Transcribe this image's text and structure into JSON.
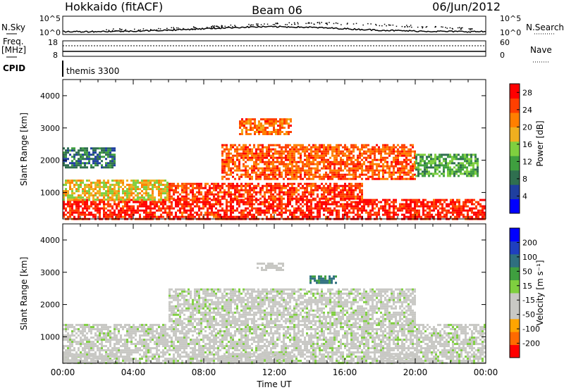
{
  "header": {
    "title_left": "Hokkaido (fitACF)",
    "title_center": "Beam 06",
    "title_right": "06/Jun/2012"
  },
  "strip_panels": {
    "nsky_label": "N.Sky",
    "nsearch_label": "N.Search",
    "nsky_ticks": [
      "10^5",
      "10^0"
    ],
    "nsearch_ticks": [
      "10^5",
      "10^0"
    ],
    "freq_label_line1": "Freq.",
    "freq_label_line2": "[MHz]",
    "freq_ticks": [
      "18",
      "8"
    ],
    "nave_label": "Nave",
    "nave_ticks": [
      "60",
      "0"
    ],
    "cpid_label": "CPID",
    "cpid_value": "themis 3300"
  },
  "colors": {
    "power_scale": [
      "#0000ff",
      "#1f3f9f",
      "#2f6f4f",
      "#3f9f3f",
      "#7fcf3f",
      "#efaf1f",
      "#ff7f00",
      "#ff3f00",
      "#ff0000"
    ],
    "velocity_scale": [
      "#ff0000",
      "#ff6a00",
      "#ffa500",
      "#c8c8c4",
      "#c8c8c4",
      "#7fcf3f",
      "#3f9f3f",
      "#2f6f7f",
      "#1f3fbf",
      "#0000ff"
    ],
    "scatter_gray": "#c8c8c4"
  },
  "chart_data": [
    {
      "type": "heatmap",
      "name": "power",
      "ylabel": "Slant Range [km]",
      "xlabel": "",
      "x_range_hours": [
        0,
        24
      ],
      "y_range_km": [
        180,
        4500
      ],
      "yticks": [
        "1000",
        "2000",
        "3000",
        "4000"
      ],
      "colorbar_label": "Power [dB]",
      "colorbar_ticks": [
        "4",
        "8",
        "12",
        "16",
        "20",
        "24",
        "28"
      ],
      "colorbar_range": [
        0,
        30
      ],
      "regions": [
        {
          "t0": 0.0,
          "t1": 24.0,
          "r0": 200,
          "r1": 800,
          "level": 27
        },
        {
          "t0": 0.0,
          "t1": 6.0,
          "r0": 800,
          "r1": 1400,
          "level": 18
        },
        {
          "t0": 6.0,
          "t1": 17.0,
          "r0": 800,
          "r1": 1300,
          "level": 26
        },
        {
          "t0": 9.0,
          "t1": 20.0,
          "r0": 1400,
          "r1": 2500,
          "level": 24
        },
        {
          "t0": 10.0,
          "t1": 13.0,
          "r0": 2800,
          "r1": 3300,
          "level": 23
        },
        {
          "t0": 20.0,
          "t1": 23.5,
          "r0": 1500,
          "r1": 2200,
          "level": 12
        },
        {
          "t0": 0.0,
          "t1": 3.0,
          "r0": 1800,
          "r1": 2400,
          "level": 8
        }
      ]
    },
    {
      "type": "heatmap",
      "name": "velocity",
      "ylabel": "Slant Range [km]",
      "xlabel": "Time UT",
      "x_range_hours": [
        0,
        24
      ],
      "xticks": [
        "00:00",
        "04:00",
        "08:00",
        "12:00",
        "16:00",
        "20:00",
        "00:00"
      ],
      "y_range_km": [
        180,
        4500
      ],
      "yticks": [
        "1000",
        "2000",
        "3000",
        "4000"
      ],
      "colorbar_label": "Velocity [m s⁻¹]",
      "colorbar_ticks": [
        "200",
        "100",
        "50",
        "15",
        "-15",
        "-50",
        "-100",
        "-200"
      ],
      "colorbar_range": [
        -250,
        250
      ],
      "regions": [
        {
          "t0": 0.0,
          "t1": 24.0,
          "r0": 200,
          "r1": 1400,
          "level": 0
        },
        {
          "t0": 6.0,
          "t1": 20.0,
          "r0": 1400,
          "r1": 2500,
          "level": 0
        },
        {
          "t0": 14.0,
          "t1": 15.5,
          "r0": 2700,
          "r1": 2900,
          "level": 110
        },
        {
          "t0": 11.0,
          "t1": 12.5,
          "r0": 3100,
          "r1": 3300,
          "level": -60
        },
        {
          "t0": 0.0,
          "t1": 3.0,
          "r0": 200,
          "r1": 500,
          "level": -60
        },
        {
          "t0": 9.0,
          "t1": 13.0,
          "r0": 200,
          "r1": 500,
          "level": -40
        },
        {
          "t0": 18.0,
          "t1": 20.0,
          "r0": 200,
          "r1": 500,
          "level": -60
        }
      ]
    }
  ]
}
